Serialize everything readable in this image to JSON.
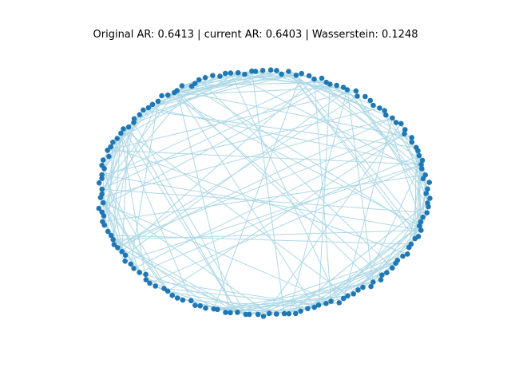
{
  "title": "Original AR: 0.6413 | current AR: 0.6403 | Wasserstein: 0.1248",
  "graph": {
    "layout": "circular",
    "node_count": 160,
    "edge_count": 220,
    "node_color": "#1f77b4",
    "edge_color": "#add8e6"
  }
}
